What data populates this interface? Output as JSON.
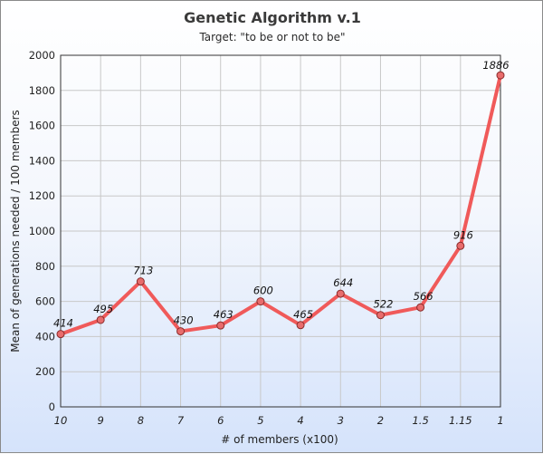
{
  "chart_data": {
    "type": "line",
    "title": "Genetic Algorithm v.1",
    "subtitle": "Target: \"to be or not to be\"",
    "xlabel": "# of members (x100)",
    "ylabel": "Mean of generations needed / 100 members",
    "categories": [
      "10",
      "9",
      "8",
      "7",
      "6",
      "5",
      "4",
      "3",
      "2",
      "1.5",
      "1.15",
      "1"
    ],
    "values": [
      414,
      495,
      713,
      430,
      463,
      600,
      465,
      644,
      522,
      566,
      916,
      1886
    ],
    "data_labels": [
      "414",
      "495",
      "713",
      "430",
      "463",
      "600",
      "465",
      "644",
      "522",
      "566",
      "916",
      "1886"
    ],
    "ylim": [
      0,
      2000
    ],
    "y_ticks": [
      "0",
      "200",
      "400",
      "600",
      "800",
      "1000",
      "1200",
      "1400",
      "1600",
      "1800",
      "2000"
    ],
    "grid": true,
    "legend": "none",
    "colors": {
      "line": "#f05a5a",
      "marker_fill": "#e86c6c",
      "marker_stroke": "#8a2b2b",
      "grid": "#c8c8c8"
    }
  }
}
